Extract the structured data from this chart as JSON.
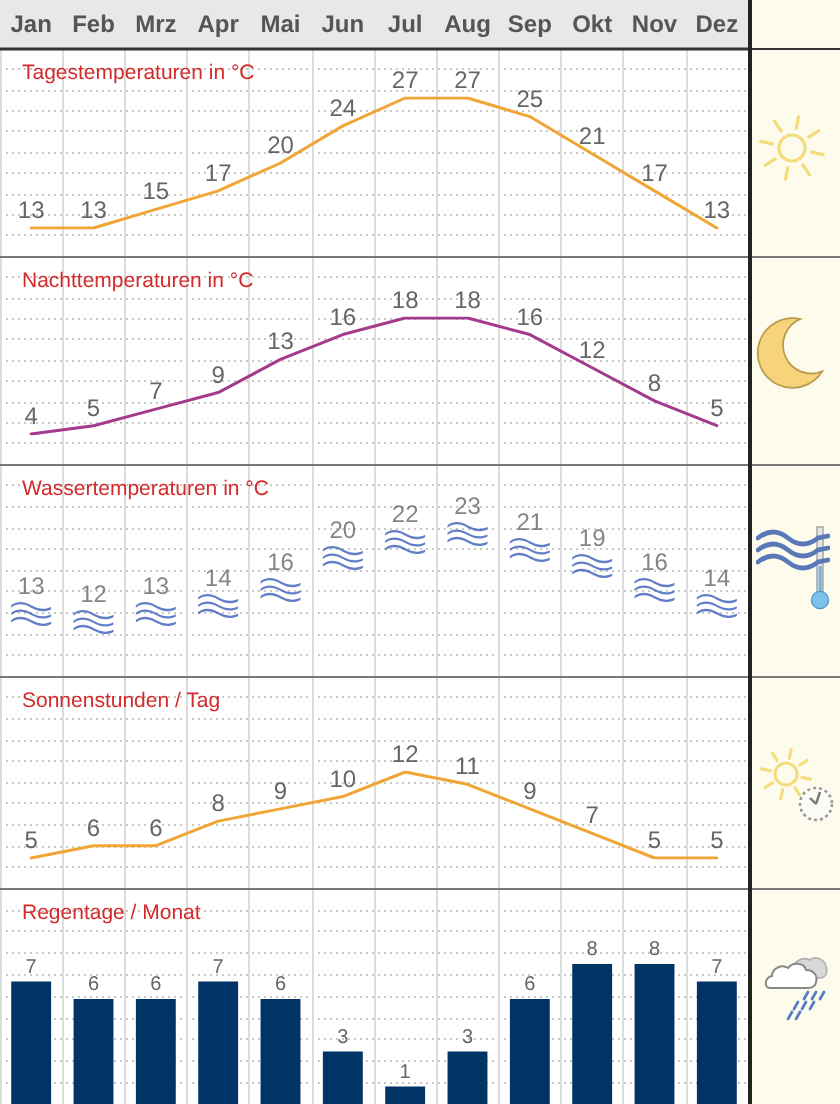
{
  "chart_data": [
    {
      "type": "line",
      "title": "Tagestemperaturen in °C",
      "categories": [
        "Jan",
        "Feb",
        "Mrz",
        "Apr",
        "Mai",
        "Jun",
        "Jul",
        "Aug",
        "Sep",
        "Okt",
        "Nov",
        "Dez"
      ],
      "values": [
        13,
        13,
        15,
        17,
        20,
        24,
        27,
        27,
        25,
        21,
        17,
        13
      ],
      "color": "#f0a535",
      "data_labels": true,
      "marker": "none",
      "grid": true,
      "tick_labels": "x"
    },
    {
      "type": "line",
      "title": "Nachttemperaturen in °C",
      "categories": [
        null,
        null,
        null,
        null,
        null,
        null,
        null,
        null,
        null,
        null,
        null,
        null
      ],
      "values": [
        4,
        5,
        7,
        9,
        13,
        16,
        18,
        18,
        16,
        12,
        8,
        5
      ],
      "color": "#a43a8e",
      "data_labels": true,
      "marker": "none",
      "grid": true,
      "tick_labels": false
    },
    {
      "type": "scatter",
      "title": "Wassertemperaturen in °C",
      "categories": [
        null,
        null,
        null,
        null,
        null,
        null,
        null,
        null,
        null,
        null,
        null,
        null
      ],
      "values": [
        13,
        12,
        13,
        14,
        16,
        20,
        22,
        23,
        21,
        19,
        16,
        14
      ],
      "color": "#3a5eb8",
      "data_labels": true,
      "grid": true,
      "tick_labels": false
    },
    {
      "type": "line",
      "title": "Sonnenstunden / Tag",
      "categories": [
        null,
        null,
        null,
        null,
        null,
        null,
        null,
        null,
        null,
        null,
        null,
        null
      ],
      "values": [
        5,
        6,
        6,
        8,
        9,
        10,
        12,
        11,
        9,
        7,
        5,
        5
      ],
      "color": "#f0a535",
      "data_labels": true,
      "marker": "none",
      "grid": true,
      "tick_labels": false
    },
    {
      "type": "bar",
      "title": "Regentage / Monat",
      "categories": [
        null,
        null,
        null,
        null,
        null,
        null,
        null,
        null,
        null,
        null,
        null,
        null
      ],
      "values": [
        7,
        6,
        6,
        7,
        6,
        3,
        1,
        3,
        6,
        8,
        8,
        7
      ],
      "color": "#003366",
      "data_labels": true,
      "grid": true,
      "tick_labels": false
    }
  ]
}
